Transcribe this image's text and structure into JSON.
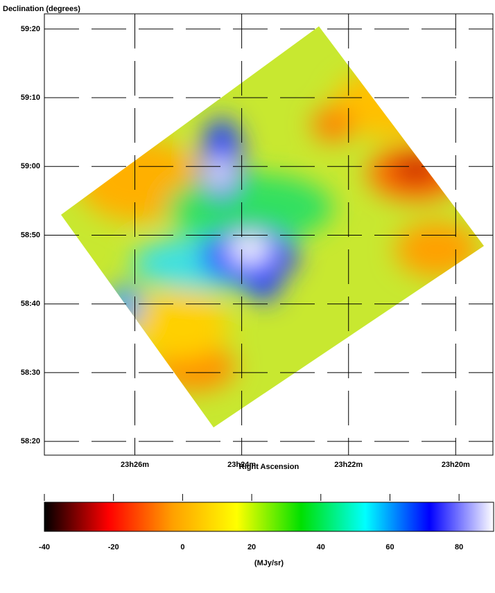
{
  "chart_data": {
    "type": "sky-image",
    "title": "Declination (degrees)",
    "xlabel": "Right Ascension",
    "xlim": [
      23.4615,
      23.3217
    ],
    "xticks": [
      {
        "value": 23.4333,
        "label": "23h26m"
      },
      {
        "value": 23.4,
        "label": "23h24m"
      },
      {
        "value": 23.3667,
        "label": "23h22m"
      },
      {
        "value": 23.3333,
        "label": "23h20m"
      }
    ],
    "ylim": [
      58.3,
      59.37
    ],
    "yticks": [
      {
        "value": 59.3333,
        "label": "59:20"
      },
      {
        "value": 59.1667,
        "label": "59:10"
      },
      {
        "value": 59.0,
        "label": "59:00"
      },
      {
        "value": 58.8333,
        "label": "58:50"
      },
      {
        "value": 58.6667,
        "label": "58:40"
      },
      {
        "value": 58.5,
        "label": "58:30"
      },
      {
        "value": 58.3333,
        "label": "58:20"
      }
    ],
    "grid": true,
    "colorbar": {
      "label": "(MJy/sr)",
      "lim": [
        -40,
        90
      ],
      "ticks": [
        -40,
        -20,
        0,
        20,
        40,
        60,
        80
      ],
      "colormap": [
        "#000000",
        "#ff0000",
        "#ffa000",
        "#ffff00",
        "#00e000",
        "#00ffff",
        "#0000ff",
        "#ffffff"
      ]
    }
  }
}
